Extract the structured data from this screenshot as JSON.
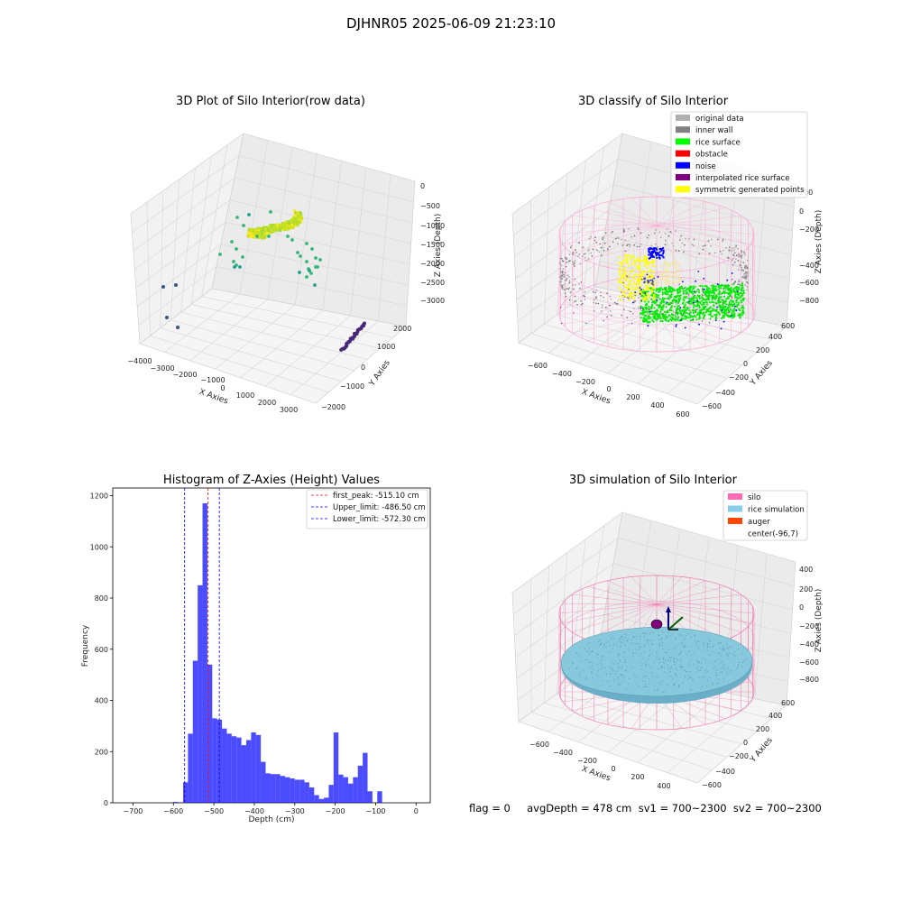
{
  "figure": {
    "suptitle": "DJHNR05 2025-06-09 21:23:10",
    "footer": "flag = 0     avgDepth = 478 cm  sv1 = 700~2300  sv2 = 700~2300"
  },
  "panels": {
    "raw": {
      "title": "3D Plot of Silo Interior(row data)",
      "xlabel": "X Axies",
      "ylabel": "Y Axies",
      "zlabel": "Z Axies (Depth)",
      "xticks": [
        "−4000",
        "−3000",
        "−2000",
        "−1000",
        "0",
        "1000",
        "2000",
        "3000"
      ],
      "yticks": [
        "−2000",
        "−1000",
        "0",
        "1000",
        "2000"
      ],
      "zticks": [
        "0",
        "−500",
        "−1000",
        "−1500",
        "−2000",
        "−2500",
        "−3000"
      ]
    },
    "classify": {
      "title": "3D classify of Silo Interior",
      "xlabel": "X Axies",
      "ylabel": "Y Axies",
      "zlabel": "Z Axies (Depth)",
      "xticks": [
        "−600",
        "−400",
        "−200",
        "0",
        "200",
        "400",
        "600"
      ],
      "yticks": [
        "−600",
        "−400",
        "−200",
        "0",
        "200",
        "400",
        "600"
      ],
      "zticks": [
        "200",
        "0",
        "−200",
        "−400",
        "−600",
        "−800"
      ],
      "legend": [
        {
          "label": "original data",
          "color": "#b0b0b0"
        },
        {
          "label": "inner wall",
          "color": "#808080"
        },
        {
          "label": "rice surface",
          "color": "#00ff00"
        },
        {
          "label": "obstacle",
          "color": "#ff0000"
        },
        {
          "label": "noise",
          "color": "#0000ff"
        },
        {
          "label": "interpolated rice surface",
          "color": "#800080"
        },
        {
          "label": "symmetric generated points",
          "color": "#ffff00"
        }
      ]
    },
    "simulation": {
      "title": "3D simulation of Silo Interior",
      "xlabel": "X Axies",
      "ylabel": "Y Axies",
      "zlabel": "Z Axies (Depth)",
      "xticks": [
        "−600",
        "−400",
        "−200",
        "0",
        "200",
        "400"
      ],
      "yticks": [
        "−600",
        "−400",
        "−200",
        "0",
        "200",
        "400",
        "600"
      ],
      "zticks": [
        "400",
        "200",
        "0",
        "−200",
        "−400",
        "−600",
        "−800"
      ],
      "legend": [
        {
          "label": "silo",
          "color": "#ff69b4"
        },
        {
          "label": "rice simulation",
          "color": "#87ceeb"
        },
        {
          "label": "auger",
          "color": "#ff4500"
        },
        {
          "label": "center(-96,7)",
          "color": "none"
        }
      ]
    }
  },
  "chart_data": {
    "type": "bar",
    "title": "Histogram of Z-Axies (Height) Values",
    "xlabel": "Depth (cm)",
    "ylabel": "Frequency",
    "xlim": [
      -750,
      35
    ],
    "ylim": [
      0,
      1230
    ],
    "grid": false,
    "legend_position": "top-right",
    "bar_color": "#0000ff",
    "xticks": [
      -700,
      -600,
      -500,
      -400,
      -300,
      -200,
      -100,
      0
    ],
    "yticks": [
      0,
      200,
      400,
      600,
      800,
      1000,
      1200
    ],
    "bins": [
      {
        "x0": -600,
        "x1": -588,
        "v": 3
      },
      {
        "x0": -588,
        "x1": -576,
        "v": 1
      },
      {
        "x0": -576,
        "x1": -564,
        "v": 80
      },
      {
        "x0": -564,
        "x1": -552,
        "v": 270
      },
      {
        "x0": -552,
        "x1": -540,
        "v": 555
      },
      {
        "x0": -540,
        "x1": -528,
        "v": 850
      },
      {
        "x0": -528,
        "x1": -516,
        "v": 1170
      },
      {
        "x0": -516,
        "x1": -504,
        "v": 540
      },
      {
        "x0": -504,
        "x1": -492,
        "v": 330
      },
      {
        "x0": -492,
        "x1": -480,
        "v": 325
      },
      {
        "x0": -480,
        "x1": -468,
        "v": 290
      },
      {
        "x0": -468,
        "x1": -456,
        "v": 270
      },
      {
        "x0": -456,
        "x1": -444,
        "v": 260
      },
      {
        "x0": -444,
        "x1": -432,
        "v": 255
      },
      {
        "x0": -432,
        "x1": -420,
        "v": 225
      },
      {
        "x0": -420,
        "x1": -408,
        "v": 245
      },
      {
        "x0": -408,
        "x1": -396,
        "v": 275
      },
      {
        "x0": -396,
        "x1": -384,
        "v": 265
      },
      {
        "x0": -384,
        "x1": -372,
        "v": 160
      },
      {
        "x0": -372,
        "x1": -360,
        "v": 115
      },
      {
        "x0": -360,
        "x1": -348,
        "v": 112
      },
      {
        "x0": -348,
        "x1": -336,
        "v": 112
      },
      {
        "x0": -336,
        "x1": -324,
        "v": 105
      },
      {
        "x0": -324,
        "x1": -312,
        "v": 100
      },
      {
        "x0": -312,
        "x1": -300,
        "v": 95
      },
      {
        "x0": -300,
        "x1": -288,
        "v": 90
      },
      {
        "x0": -288,
        "x1": -276,
        "v": 90
      },
      {
        "x0": -276,
        "x1": -264,
        "v": 80
      },
      {
        "x0": -264,
        "x1": -252,
        "v": 60
      },
      {
        "x0": -252,
        "x1": -240,
        "v": 30
      },
      {
        "x0": -240,
        "x1": -228,
        "v": 15
      },
      {
        "x0": -228,
        "x1": -216,
        "v": 20
      },
      {
        "x0": -216,
        "x1": -204,
        "v": 70
      },
      {
        "x0": -204,
        "x1": -192,
        "v": 275
      },
      {
        "x0": -192,
        "x1": -180,
        "v": 110
      },
      {
        "x0": -180,
        "x1": -168,
        "v": 100
      },
      {
        "x0": -168,
        "x1": -156,
        "v": 75
      },
      {
        "x0": -156,
        "x1": -144,
        "v": 100
      },
      {
        "x0": -144,
        "x1": -132,
        "v": 145
      },
      {
        "x0": -132,
        "x1": -120,
        "v": 195
      },
      {
        "x0": -120,
        "x1": -108,
        "v": 45
      },
      {
        "x0": -108,
        "x1": -96,
        "v": 0
      },
      {
        "x0": -96,
        "x1": -84,
        "v": 45
      }
    ],
    "lines": [
      {
        "x": -515.1,
        "label": "first_peak: -515.10 cm",
        "color": "#ff0000"
      },
      {
        "x": -486.5,
        "label": "Upper_limit: -486.50 cm",
        "color": "#0000ff"
      },
      {
        "x": -572.3,
        "label": "Lower_limit: -572.30 cm",
        "color": "#0000ff"
      }
    ]
  }
}
